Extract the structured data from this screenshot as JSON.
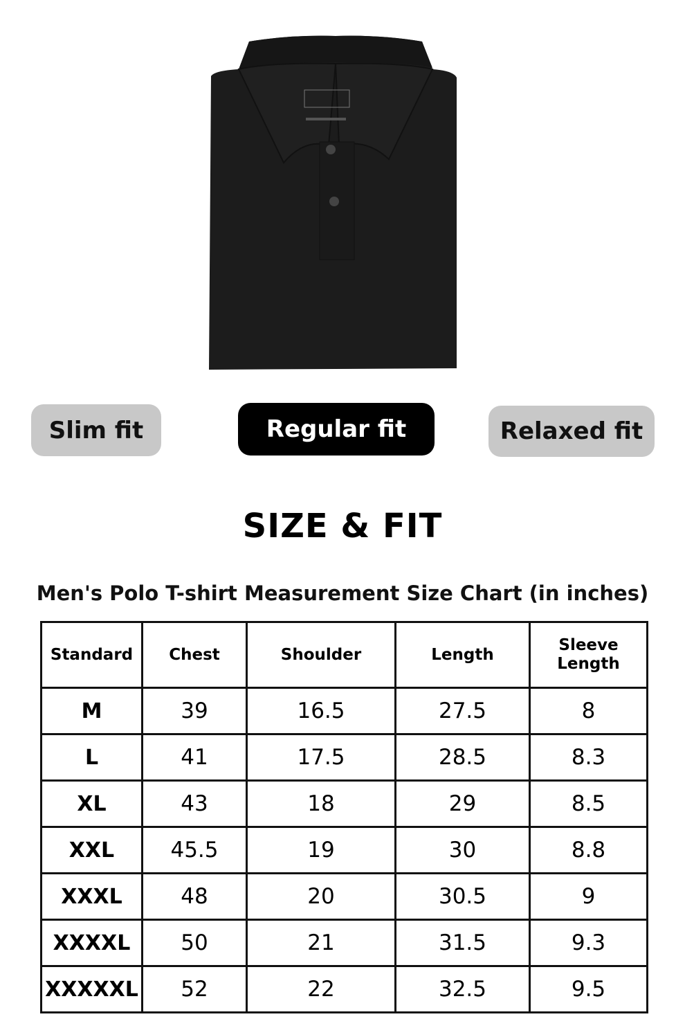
{
  "product_image": {
    "alt": "black polo t-shirt folded",
    "color": "#1c1c1c"
  },
  "fit_options": [
    {
      "label": "Slim fit",
      "selected": false
    },
    {
      "label": "Regular fit",
      "selected": true
    },
    {
      "label": "Relaxed fit",
      "selected": false
    }
  ],
  "title": "SIZE & FIT",
  "subtitle": "Men's Polo T-shirt Measurement Size Chart (in inches)",
  "table": {
    "headers": [
      "Standard",
      "Chest",
      "Shoulder",
      "Length",
      "Sleeve Length"
    ],
    "rows": [
      [
        "M",
        "39",
        "16.5",
        "27.5",
        "8"
      ],
      [
        "L",
        "41",
        "17.5",
        "28.5",
        "8.3"
      ],
      [
        "XL",
        "43",
        "18",
        "29",
        "8.5"
      ],
      [
        "XXL",
        "45.5",
        "19",
        "30",
        "8.8"
      ],
      [
        "XXXL",
        "48",
        "20",
        "30.5",
        "9"
      ],
      [
        "XXXXL",
        "50",
        "21",
        "31.5",
        "9.3"
      ],
      [
        "XXXXXL",
        "52",
        "22",
        "32.5",
        "9.5"
      ]
    ]
  }
}
